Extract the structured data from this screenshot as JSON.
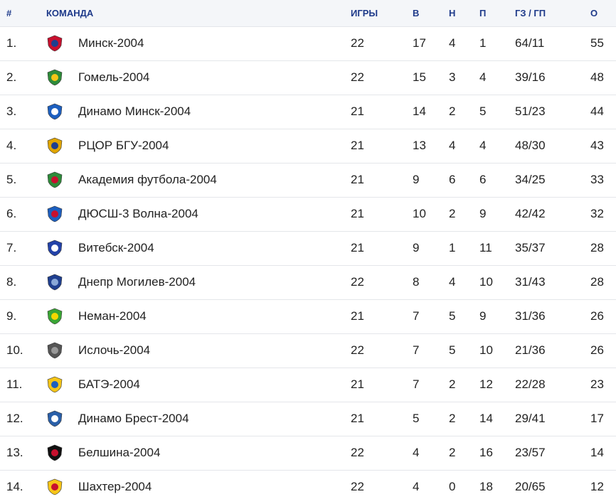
{
  "headers": {
    "pos": "#",
    "team": "КОМАНДА",
    "games": "ИГРЫ",
    "wins": "В",
    "draws": "Н",
    "losses": "П",
    "goals": "ГЗ / ГП",
    "points": "О"
  },
  "rows": [
    {
      "pos": "1.",
      "team": "Минск-2004",
      "games": "22",
      "w": "17",
      "d": "4",
      "l": "1",
      "goals": "64/11",
      "pts": "55",
      "icon": "minsk-logo-icon",
      "color": "#c8102e",
      "color2": "#1d3f8f"
    },
    {
      "pos": "2.",
      "team": "Гомель-2004",
      "games": "22",
      "w": "15",
      "d": "3",
      "l": "4",
      "goals": "39/16",
      "pts": "48",
      "icon": "gomel-logo-icon",
      "color": "#2e8b3a",
      "color2": "#f5c518"
    },
    {
      "pos": "3.",
      "team": "Динамо Минск-2004",
      "games": "21",
      "w": "14",
      "d": "2",
      "l": "5",
      "goals": "51/23",
      "pts": "44",
      "icon": "dinamo-minsk-logo-icon",
      "color": "#1d5fbf",
      "color2": "#ffffff"
    },
    {
      "pos": "4.",
      "team": "РЦОР БГУ-2004",
      "games": "21",
      "w": "13",
      "d": "4",
      "l": "4",
      "goals": "48/30",
      "pts": "43",
      "icon": "rcor-bgu-logo-icon",
      "color": "#e0a500",
      "color2": "#1d3f8f"
    },
    {
      "pos": "5.",
      "team": "Академия футбола-2004",
      "games": "21",
      "w": "9",
      "d": "6",
      "l": "6",
      "goals": "34/25",
      "pts": "33",
      "icon": "academy-logo-icon",
      "color": "#2e8b3a",
      "color2": "#c8102e"
    },
    {
      "pos": "6.",
      "team": "ДЮСШ-3 Волна-2004",
      "games": "21",
      "w": "10",
      "d": "2",
      "l": "9",
      "goals": "42/42",
      "pts": "32",
      "icon": "volna-logo-icon",
      "color": "#1d5fbf",
      "color2": "#c8102e"
    },
    {
      "pos": "7.",
      "team": "Витебск-2004",
      "games": "21",
      "w": "9",
      "d": "1",
      "l": "11",
      "goals": "35/37",
      "pts": "28",
      "icon": "vitebsk-logo-icon",
      "color": "#2342a8",
      "color2": "#ffffff"
    },
    {
      "pos": "8.",
      "team": "Днепр Могилев-2004",
      "games": "22",
      "w": "8",
      "d": "4",
      "l": "10",
      "goals": "31/43",
      "pts": "28",
      "icon": "dnepr-logo-icon",
      "color": "#1f3f8f",
      "color2": "#8aa8d8"
    },
    {
      "pos": "9.",
      "team": "Неман-2004",
      "games": "21",
      "w": "7",
      "d": "5",
      "l": "9",
      "goals": "31/36",
      "pts": "26",
      "icon": "neman-logo-icon",
      "color": "#3aa635",
      "color2": "#f5d800"
    },
    {
      "pos": "10.",
      "team": "Ислочь-2004",
      "games": "22",
      "w": "7",
      "d": "5",
      "l": "10",
      "goals": "21/36",
      "pts": "26",
      "icon": "isloch-logo-icon",
      "color": "#555555",
      "color2": "#999999"
    },
    {
      "pos": "11.",
      "team": "БАТЭ-2004",
      "games": "21",
      "w": "7",
      "d": "2",
      "l": "12",
      "goals": "22/28",
      "pts": "23",
      "icon": "bate-logo-icon",
      "color": "#f5c518",
      "color2": "#1d5fbf"
    },
    {
      "pos": "12.",
      "team": "Динамо Брест-2004",
      "games": "21",
      "w": "5",
      "d": "2",
      "l": "14",
      "goals": "29/41",
      "pts": "17",
      "icon": "dinamo-brest-logo-icon",
      "color": "#2a5fa8",
      "color2": "#ffffff"
    },
    {
      "pos": "13.",
      "team": "Белшина-2004",
      "games": "22",
      "w": "4",
      "d": "2",
      "l": "16",
      "goals": "23/57",
      "pts": "14",
      "icon": "belshina-logo-icon",
      "color": "#111111",
      "color2": "#c8102e"
    },
    {
      "pos": "14.",
      "team": "Шахтер-2004",
      "games": "22",
      "w": "4",
      "d": "0",
      "l": "18",
      "goals": "20/65",
      "pts": "12",
      "icon": "shakhter-logo-icon",
      "color": "#f5c518",
      "color2": "#c8102e"
    }
  ]
}
